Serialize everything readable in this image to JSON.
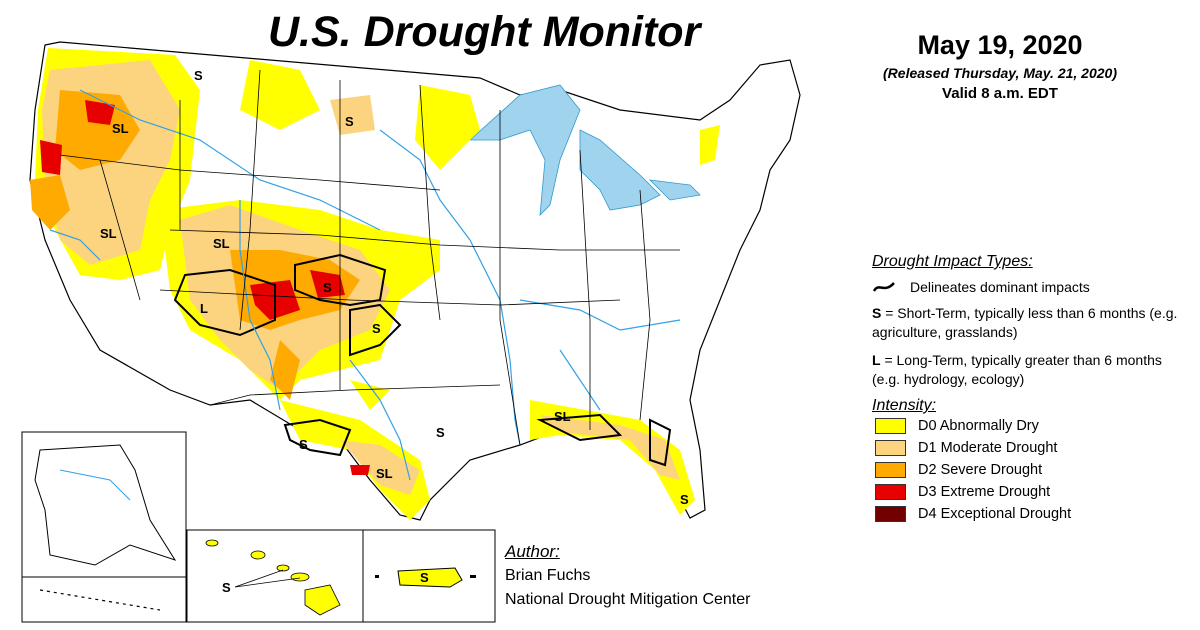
{
  "title": "U.S. Drought Monitor",
  "date": {
    "main": "May 19, 2020",
    "released": "(Released Thursday, May. 21, 2020)",
    "valid": "Valid 8 a.m. EDT"
  },
  "impact_legend": {
    "heading": "Drought Impact Types:",
    "delineates": "Delineates dominant impacts",
    "short_term_code": "S",
    "short_term_desc": "= Short-Term, typically less than 6 months (e.g. agriculture, grasslands)",
    "long_term_code": "L",
    "long_term_desc": "= Long-Term, typically greater than 6 months (e.g. hydrology, ecology)"
  },
  "intensity_legend": {
    "heading": "Intensity:",
    "items": [
      {
        "label": "D0 Abnormally Dry",
        "color": "#FFFF00"
      },
      {
        "label": "D1 Moderate Drought",
        "color": "#FCD37F"
      },
      {
        "label": "D2 Severe Drought",
        "color": "#FFAA00"
      },
      {
        "label": "D3 Extreme Drought",
        "color": "#E60000"
      },
      {
        "label": "D4 Exceptional Drought",
        "color": "#730000"
      }
    ]
  },
  "author": {
    "heading": "Author:",
    "name": "Brian Fuchs",
    "org": "National Drought Mitigation Center"
  },
  "map_labels": {
    "mt_north": "S",
    "oregon": "SL",
    "dakota": "S",
    "nevada": "SL",
    "utah": "SL",
    "colorado_east": "S",
    "four_corners": "L",
    "oklahoma": "S",
    "west_texas": "S",
    "texas_east": "S",
    "south_texas": "SL",
    "gulf_coast": "SL",
    "florida": "S",
    "hawaii": "S",
    "puerto_rico": "S"
  },
  "colors": {
    "water": "#9FD3EE",
    "river": "#33A1E5",
    "border": "#000000"
  }
}
